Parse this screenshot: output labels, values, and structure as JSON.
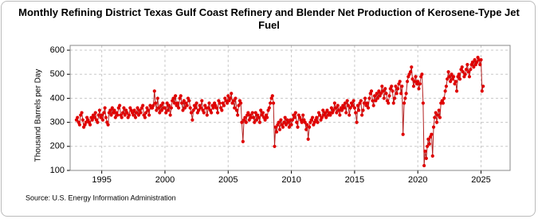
{
  "chart_data": {
    "type": "line",
    "title": "Monthly Refining District Texas Gulf Coast Refinery and Blender Net Production of Kerosene-Type Jet Fuel",
    "y_label": "Thousand Barrels per Day",
    "source": "Source: U.S. Energy Information Administration",
    "xlim": [
      1992.5,
      2027.3
    ],
    "ylim": [
      100,
      620
    ],
    "xticks": [
      1995,
      2000,
      2005,
      2010,
      2015,
      2020,
      2025
    ],
    "yticks": [
      100,
      200,
      300,
      400,
      500,
      600
    ],
    "grid": true,
    "x": [
      1993,
      1993.08,
      1993.17,
      1993.25,
      1993.33,
      1993.42,
      1993.5,
      1993.58,
      1993.67,
      1993.75,
      1993.83,
      1993.92,
      1994,
      1994.08,
      1994.17,
      1994.25,
      1994.33,
      1994.42,
      1994.5,
      1994.58,
      1994.67,
      1994.75,
      1994.83,
      1994.92,
      1995,
      1995.08,
      1995.17,
      1995.25,
      1995.33,
      1995.42,
      1995.5,
      1995.58,
      1995.67,
      1995.75,
      1995.83,
      1995.92,
      1996,
      1996.08,
      1996.17,
      1996.25,
      1996.33,
      1996.42,
      1996.5,
      1996.58,
      1996.67,
      1996.75,
      1996.83,
      1996.92,
      1997,
      1997.08,
      1997.17,
      1997.25,
      1997.33,
      1997.42,
      1997.5,
      1997.58,
      1997.67,
      1997.75,
      1997.83,
      1997.92,
      1998,
      1998.08,
      1998.17,
      1998.25,
      1998.33,
      1998.42,
      1998.5,
      1998.58,
      1998.67,
      1998.75,
      1998.83,
      1998.92,
      1999,
      1999.08,
      1999.17,
      1999.25,
      1999.33,
      1999.42,
      1999.5,
      1999.58,
      1999.67,
      1999.75,
      1999.83,
      1999.92,
      2000,
      2000.08,
      2000.17,
      2000.25,
      2000.33,
      2000.42,
      2000.5,
      2000.58,
      2000.67,
      2000.75,
      2000.83,
      2000.92,
      2001,
      2001.08,
      2001.17,
      2001.25,
      2001.33,
      2001.42,
      2001.5,
      2001.58,
      2001.67,
      2001.75,
      2001.83,
      2001.92,
      2002,
      2002.08,
      2002.17,
      2002.25,
      2002.33,
      2002.42,
      2002.5,
      2002.58,
      2002.67,
      2002.75,
      2002.83,
      2002.92,
      2003,
      2003.08,
      2003.17,
      2003.25,
      2003.33,
      2003.42,
      2003.5,
      2003.58,
      2003.67,
      2003.75,
      2003.83,
      2003.92,
      2004,
      2004.08,
      2004.17,
      2004.25,
      2004.33,
      2004.42,
      2004.5,
      2004.58,
      2004.67,
      2004.75,
      2004.83,
      2004.92,
      2005,
      2005.08,
      2005.17,
      2005.25,
      2005.33,
      2005.42,
      2005.5,
      2005.58,
      2005.67,
      2005.75,
      2005.83,
      2005.92,
      2006,
      2006.08,
      2006.17,
      2006.25,
      2006.33,
      2006.42,
      2006.5,
      2006.58,
      2006.67,
      2006.75,
      2006.83,
      2006.92,
      2007,
      2007.08,
      2007.17,
      2007.25,
      2007.33,
      2007.42,
      2007.5,
      2007.58,
      2007.67,
      2007.75,
      2007.83,
      2007.92,
      2008,
      2008.08,
      2008.17,
      2008.25,
      2008.33,
      2008.42,
      2008.5,
      2008.58,
      2008.67,
      2008.75,
      2008.83,
      2008.92,
      2009,
      2009.08,
      2009.17,
      2009.25,
      2009.33,
      2009.42,
      2009.5,
      2009.58,
      2009.67,
      2009.75,
      2009.83,
      2009.92,
      2010,
      2010.08,
      2010.17,
      2010.25,
      2010.33,
      2010.42,
      2010.5,
      2010.58,
      2010.67,
      2010.75,
      2010.83,
      2010.92,
      2011,
      2011.08,
      2011.17,
      2011.25,
      2011.33,
      2011.42,
      2011.5,
      2011.58,
      2011.67,
      2011.75,
      2011.83,
      2011.92,
      2012,
      2012.08,
      2012.17,
      2012.25,
      2012.33,
      2012.42,
      2012.5,
      2012.58,
      2012.67,
      2012.75,
      2012.83,
      2012.92,
      2013,
      2013.08,
      2013.17,
      2013.25,
      2013.33,
      2013.42,
      2013.5,
      2013.58,
      2013.67,
      2013.75,
      2013.83,
      2013.92,
      2014,
      2014.08,
      2014.17,
      2014.25,
      2014.33,
      2014.42,
      2014.5,
      2014.58,
      2014.67,
      2014.75,
      2014.83,
      2014.92,
      2015,
      2015.08,
      2015.17,
      2015.25,
      2015.33,
      2015.42,
      2015.5,
      2015.58,
      2015.67,
      2015.75,
      2015.83,
      2015.92,
      2016,
      2016.08,
      2016.17,
      2016.25,
      2016.33,
      2016.42,
      2016.5,
      2016.58,
      2016.67,
      2016.75,
      2016.83,
      2016.92,
      2017,
      2017.08,
      2017.17,
      2017.25,
      2017.33,
      2017.42,
      2017.5,
      2017.58,
      2017.67,
      2017.75,
      2017.83,
      2017.92,
      2018,
      2018.08,
      2018.17,
      2018.25,
      2018.33,
      2018.42,
      2018.5,
      2018.58,
      2018.67,
      2018.75,
      2018.83,
      2018.92,
      2019,
      2019.08,
      2019.17,
      2019.25,
      2019.33,
      2019.42,
      2019.5,
      2019.58,
      2019.67,
      2019.75,
      2019.83,
      2019.92,
      2020,
      2020.08,
      2020.17,
      2020.25,
      2020.33,
      2020.42,
      2020.5,
      2020.58,
      2020.67,
      2020.75,
      2020.83,
      2020.92,
      2021,
      2021.08,
      2021.17,
      2021.25,
      2021.33,
      2021.42,
      2021.5,
      2021.58,
      2021.67,
      2021.75,
      2021.83,
      2021.92,
      2022,
      2022.08,
      2022.17,
      2022.25,
      2022.33,
      2022.42,
      2022.5,
      2022.58,
      2022.67,
      2022.75,
      2022.83,
      2022.92,
      2023,
      2023.08,
      2023.17,
      2023.25,
      2023.33,
      2023.42,
      2023.5,
      2023.58,
      2023.67,
      2023.75,
      2023.83,
      2023.92,
      2024,
      2024.08,
      2024.17,
      2024.25,
      2024.33,
      2024.42,
      2024.5,
      2024.58,
      2024.67,
      2024.75,
      2024.83,
      2024.92,
      2025,
      2025.08,
      2025.17
    ],
    "series": [
      {
        "color": "#b22222",
        "marker_color": "#e00000",
        "values": [
          310,
          320,
          300,
          290,
          330,
          340,
          310,
          280,
          290,
          300,
          320,
          310,
          300,
          290,
          320,
          310,
          330,
          320,
          340,
          310,
          300,
          330,
          350,
          320,
          330,
          310,
          340,
          360,
          320,
          300,
          290,
          340,
          350,
          330,
          360,
          340,
          350,
          320,
          340,
          330,
          360,
          370,
          330,
          320,
          340,
          360,
          330,
          350,
          340,
          320,
          330,
          360,
          350,
          340,
          330,
          350,
          320,
          340,
          360,
          330,
          350,
          340,
          360,
          370,
          330,
          320,
          340,
          360,
          350,
          330,
          370,
          360,
          360,
          370,
          430,
          380,
          350,
          400,
          360,
          340,
          370,
          350,
          380,
          360,
          360,
          340,
          380,
          350,
          370,
          330,
          360,
          390,
          400,
          380,
          410,
          370,
          380,
          360,
          400,
          410,
          380,
          350,
          390,
          360,
          380,
          370,
          400,
          390,
          360,
          340,
          310,
          350,
          370,
          360,
          380,
          340,
          350,
          370,
          360,
          390,
          350,
          340,
          370,
          360,
          330,
          360,
          380,
          350,
          340,
          370,
          360,
          380,
          370,
          360,
          340,
          390,
          380,
          360,
          350,
          380,
          370,
          400,
          390,
          380,
          410,
          390,
          400,
          420,
          380,
          390,
          360,
          400,
          350,
          330,
          370,
          390,
          380,
          300,
          220,
          310,
          320,
          300,
          330,
          340,
          310,
          330,
          320,
          340,
          320,
          300,
          340,
          310,
          330,
          320,
          300,
          350,
          330,
          340,
          320,
          310,
          330,
          320,
          350,
          360,
          380,
          400,
          410,
          380,
          200,
          280,
          260,
          290,
          300,
          270,
          310,
          290,
          280,
          300,
          320,
          290,
          310,
          300,
          280,
          310,
          290,
          310,
          330,
          320,
          340,
          300,
          280,
          330,
          320,
          310,
          300,
          330,
          310,
          300,
          270,
          290,
          230,
          280,
          300,
          310,
          320,
          290,
          300,
          310,
          320,
          300,
          340,
          330,
          310,
          320,
          350,
          330,
          340,
          320,
          350,
          330,
          340,
          330,
          360,
          340,
          350,
          380,
          360,
          340,
          370,
          350,
          330,
          360,
          350,
          370,
          360,
          380,
          340,
          390,
          370,
          330,
          360,
          380,
          370,
          390,
          360,
          340,
          300,
          370,
          350,
          380,
          390,
          330,
          350,
          380,
          400,
          370,
          380,
          360,
          400,
          420,
          430,
          390,
          370,
          410,
          390,
          420,
          400,
          430,
          410,
          420,
          450,
          430,
          400,
          440,
          420,
          390,
          380,
          410,
          440,
          450,
          430,
          380,
          400,
          450,
          420,
          440,
          460,
          470,
          420,
          450,
          250,
          380,
          400,
          420,
          470,
          490,
          500,
          510,
          530,
          480,
          450,
          470,
          490,
          460,
          470,
          440,
          460,
          490,
          500,
          380,
          120,
          180,
          150,
          200,
          230,
          210,
          240,
          250,
          160,
          280,
          320,
          340,
          300,
          330,
          350,
          320,
          380,
          390,
          380,
          400,
          430,
          450,
          480,
          510,
          490,
          470,
          500,
          480,
          490,
          460,
          470,
          430,
          490,
          500,
          480,
          520,
          530,
          510,
          490,
          500,
          520,
          540,
          510,
          490,
          520,
          540,
          550,
          530,
          560,
          540,
          550,
          570,
          560,
          540,
          560,
          430,
          450
        ]
      }
    ]
  }
}
